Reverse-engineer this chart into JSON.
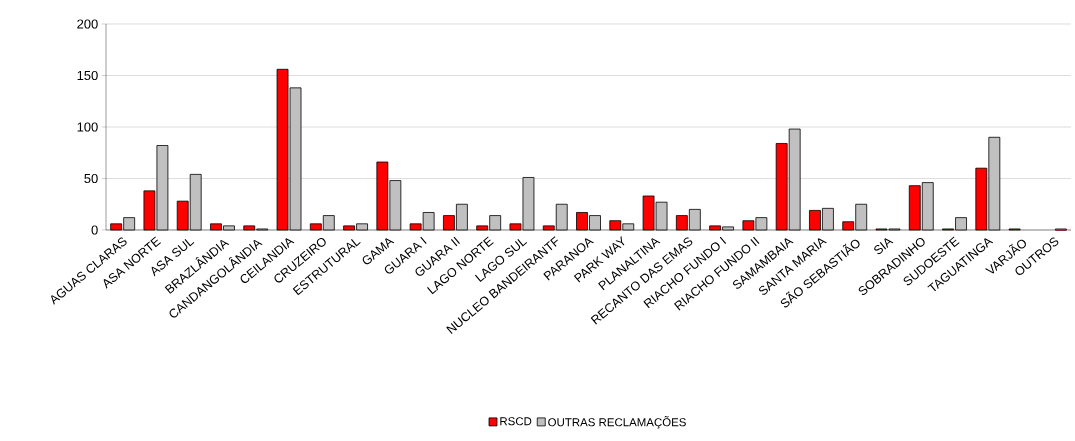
{
  "chart_data": {
    "type": "bar",
    "categories": [
      "AGUAS CLARAS",
      "ASA NORTE",
      "ASA SUL",
      "BRAZLÂNDIA",
      "CANDANGOLÂNDIA",
      "CEILANDIA",
      "CRUZEIRO",
      "ESTRUTURAL",
      "GAMA",
      "GUARA I",
      "GUARA II",
      "LAGO NORTE",
      "LAGO SUL",
      "NUCLEO BANDEIRANTF",
      "PARANOA",
      "PARK WAY",
      "PLANALTINA",
      "RECANTO DAS EMAS",
      "RIACHO FUNDO I",
      "RIACHO FUNDO II",
      "SAMAMBAIA",
      "SANTA MARIA",
      "SÃO SEBASTIÃO",
      "SIA",
      "SOBRADINHO",
      "SUDOESTE",
      "TAGUATINGA",
      "VARJÃO",
      "OUTROS"
    ],
    "series": [
      {
        "name": "RSCD",
        "color": "#ff0000",
        "values": [
          6,
          38,
          28,
          6,
          4,
          156,
          6,
          4,
          66,
          6,
          14,
          4,
          6,
          4,
          17,
          9,
          33,
          14,
          4,
          9,
          84,
          19,
          8,
          1,
          43,
          1,
          60,
          1,
          0
        ]
      },
      {
        "name": "OUTRAS RECLAMAÇÕES",
        "color": "#c0c0c0",
        "values": [
          12,
          82,
          54,
          4,
          1,
          138,
          14,
          6,
          48,
          17,
          25,
          14,
          51,
          25,
          14,
          6,
          27,
          20,
          3,
          12,
          98,
          21,
          25,
          1,
          46,
          12,
          90,
          0,
          1
        ]
      }
    ],
    "ylim": [
      0,
      200
    ],
    "yticks": [
      0,
      50,
      100,
      150,
      200
    ],
    "grid": "y",
    "legend": "bottom"
  }
}
